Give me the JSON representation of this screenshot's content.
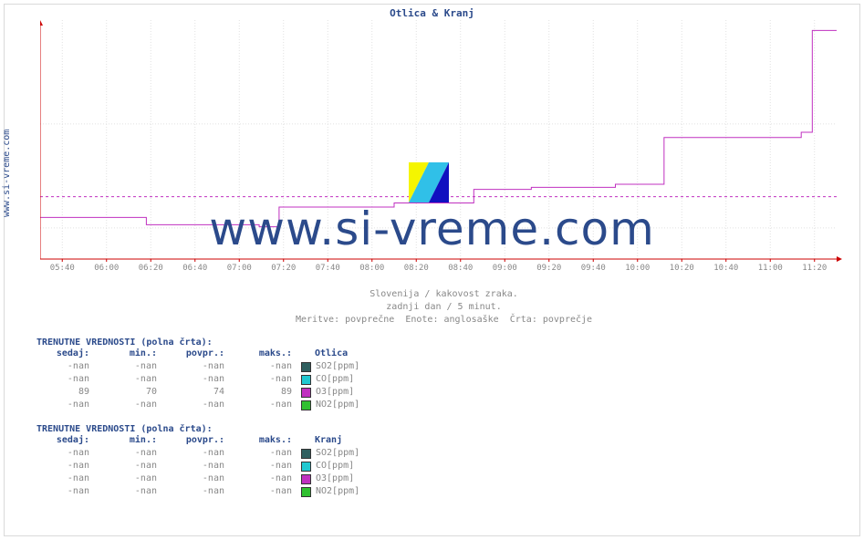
{
  "site_label": "www.si-vreme.com",
  "title": "Otlica & Kranj",
  "watermark": "www.si-vreme.com",
  "colors": {
    "frame": "#d9d9d9",
    "axis": "#cc0000",
    "grid": "#e1e1e1",
    "series": "#c030c0",
    "ref": "#c030c0",
    "title": "#2b4a8b",
    "text": "#888888",
    "header": "#2b4a8b"
  },
  "chart": {
    "ymin": 67,
    "ymax": 90,
    "yticks": [
      70,
      80
    ],
    "ref_line": 73,
    "xmin": 0,
    "xmax": 360,
    "xticks": [
      {
        "t": 10,
        "label": "05:40"
      },
      {
        "t": 30,
        "label": "06:00"
      },
      {
        "t": 50,
        "label": "06:20"
      },
      {
        "t": 70,
        "label": "06:40"
      },
      {
        "t": 90,
        "label": "07:00"
      },
      {
        "t": 110,
        "label": "07:20"
      },
      {
        "t": 130,
        "label": "07:40"
      },
      {
        "t": 150,
        "label": "08:00"
      },
      {
        "t": 170,
        "label": "08:20"
      },
      {
        "t": 190,
        "label": "08:40"
      },
      {
        "t": 210,
        "label": "09:00"
      },
      {
        "t": 230,
        "label": "09:20"
      },
      {
        "t": 250,
        "label": "09:40"
      },
      {
        "t": 270,
        "label": "10:00"
      },
      {
        "t": 290,
        "label": "10:20"
      },
      {
        "t": 310,
        "label": "10:40"
      },
      {
        "t": 330,
        "label": "11:00"
      },
      {
        "t": 350,
        "label": "11:20"
      }
    ],
    "series": [
      {
        "t": 0,
        "v": 71
      },
      {
        "t": 48,
        "v": 71
      },
      {
        "t": 48,
        "v": 70.3
      },
      {
        "t": 99,
        "v": 70.3
      },
      {
        "t": 99,
        "v": 70.1
      },
      {
        "t": 108,
        "v": 70.1
      },
      {
        "t": 108,
        "v": 72
      },
      {
        "t": 160,
        "v": 72
      },
      {
        "t": 160,
        "v": 72.4
      },
      {
        "t": 196,
        "v": 72.4
      },
      {
        "t": 196,
        "v": 73.7
      },
      {
        "t": 222,
        "v": 73.7
      },
      {
        "t": 222,
        "v": 73.9
      },
      {
        "t": 260,
        "v": 73.9
      },
      {
        "t": 260,
        "v": 74.2
      },
      {
        "t": 282,
        "v": 74.2
      },
      {
        "t": 282,
        "v": 78.7
      },
      {
        "t": 344,
        "v": 78.7
      },
      {
        "t": 344,
        "v": 79.2
      },
      {
        "t": 349,
        "v": 79.2
      },
      {
        "t": 349,
        "v": 89
      },
      {
        "t": 360,
        "v": 89
      }
    ]
  },
  "captions": [
    "Slovenija / kakovost zraka.",
    "zadnji dan / 5 minut.",
    "Meritve: povprečne  Enote: anglosaške  Črta: povprečje"
  ],
  "tables": [
    {
      "title": "TRENUTNE VREDNOSTI (polna črta):",
      "name": "Otlica",
      "cols": [
        "sedaj:",
        "min.:",
        "povpr.:",
        "maks.:"
      ],
      "rows": [
        {
          "vals": [
            "-nan",
            "-nan",
            "-nan",
            "-nan"
          ],
          "sw": "#2f5f5f",
          "lab": "SO2[ppm]"
        },
        {
          "vals": [
            "-nan",
            "-nan",
            "-nan",
            "-nan"
          ],
          "sw": "#20c8d0",
          "lab": "CO[ppm]"
        },
        {
          "vals": [
            "89",
            "70",
            "74",
            "89"
          ],
          "sw": "#c030c0",
          "lab": "O3[ppm]"
        },
        {
          "vals": [
            "-nan",
            "-nan",
            "-nan",
            "-nan"
          ],
          "sw": "#30c030",
          "lab": "NO2[ppm]"
        }
      ]
    },
    {
      "title": "TRENUTNE VREDNOSTI (polna črta):",
      "name": "Kranj",
      "cols": [
        "sedaj:",
        "min.:",
        "povpr.:",
        "maks.:"
      ],
      "rows": [
        {
          "vals": [
            "-nan",
            "-nan",
            "-nan",
            "-nan"
          ],
          "sw": "#2f5f5f",
          "lab": "SO2[ppm]"
        },
        {
          "vals": [
            "-nan",
            "-nan",
            "-nan",
            "-nan"
          ],
          "sw": "#20c8d0",
          "lab": "CO[ppm]"
        },
        {
          "vals": [
            "-nan",
            "-nan",
            "-nan",
            "-nan"
          ],
          "sw": "#c030c0",
          "lab": "O3[ppm]"
        },
        {
          "vals": [
            "-nan",
            "-nan",
            "-nan",
            "-nan"
          ],
          "sw": "#30c030",
          "lab": "NO2[ppm]"
        }
      ]
    }
  ]
}
